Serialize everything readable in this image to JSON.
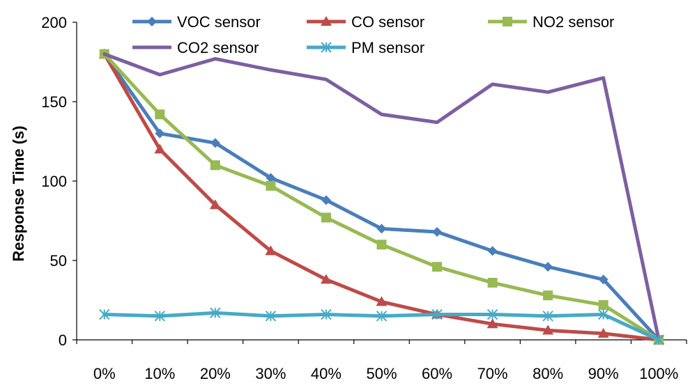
{
  "chart_data": {
    "type": "line",
    "title": "",
    "xlabel": "",
    "ylabel": "Response Time (s)",
    "ylim": [
      0,
      200
    ],
    "yticks": [
      0,
      50,
      100,
      150,
      200
    ],
    "categories": [
      "0%",
      "10%",
      "20%",
      "30%",
      "40%",
      "50%",
      "60%",
      "70%",
      "80%",
      "90%",
      "100%"
    ],
    "grid": false,
    "legend_position": "top",
    "series": [
      {
        "name": "VOC sensor",
        "color": "#4a7ebb",
        "marker": "diamond",
        "values": [
          180,
          130,
          124,
          102,
          88,
          70,
          68,
          56,
          46,
          38,
          0
        ]
      },
      {
        "name": "CO sensor",
        "color": "#be4b48",
        "marker": "triangle",
        "values": [
          180,
          120,
          85,
          56,
          38,
          24,
          16,
          10,
          6,
          4,
          0
        ]
      },
      {
        "name": "NO2 sensor",
        "color": "#98b954",
        "marker": "square",
        "values": [
          180,
          142,
          110,
          97,
          77,
          60,
          46,
          36,
          28,
          22,
          0
        ]
      },
      {
        "name": "CO2 sensor",
        "color": "#7d5fa0",
        "marker": "none",
        "values": [
          180,
          167,
          177,
          170,
          164,
          142,
          137,
          161,
          156,
          165,
          0
        ]
      },
      {
        "name": "PM sensor",
        "color": "#46aac5",
        "marker": "star",
        "values": [
          16,
          15,
          17,
          15,
          16,
          15,
          16,
          16,
          15,
          16,
          0
        ]
      }
    ]
  }
}
